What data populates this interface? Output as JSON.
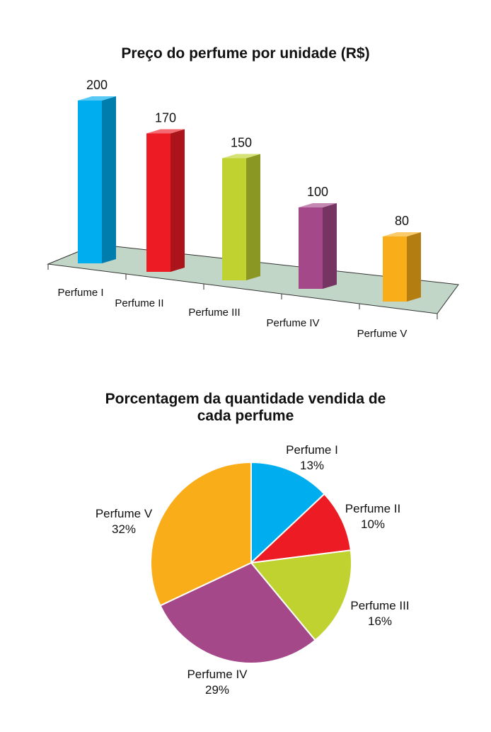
{
  "chart_data": [
    {
      "type": "bar",
      "title": "Preço do perfume por unidade (R$)",
      "categories": [
        "Perfume I",
        "Perfume II",
        "Perfume III",
        "Perfume IV",
        "Perfume V"
      ],
      "values": [
        200,
        170,
        150,
        100,
        80
      ],
      "data_labels": [
        "200",
        "170",
        "150",
        "100",
        "80"
      ],
      "colors": [
        "#00aeef",
        "#ed1c24",
        "#bfd230",
        "#a4488a",
        "#f9ad19"
      ],
      "ylim": [
        0,
        200
      ],
      "grid": false,
      "style": "3d"
    },
    {
      "type": "pie",
      "title_lines": [
        "Porcentagem da quantidade vendida de",
        "cada perfume"
      ],
      "categories": [
        "Perfume I",
        "Perfume II",
        "Perfume III",
        "Perfume IV",
        "Perfume V"
      ],
      "values": [
        13,
        10,
        16,
        29,
        32
      ],
      "value_labels": [
        "13%",
        "10%",
        "16%",
        "29%",
        "32%"
      ],
      "colors": [
        "#00aeef",
        "#ed1c24",
        "#bfd230",
        "#a4488a",
        "#f9ad19"
      ]
    }
  ]
}
